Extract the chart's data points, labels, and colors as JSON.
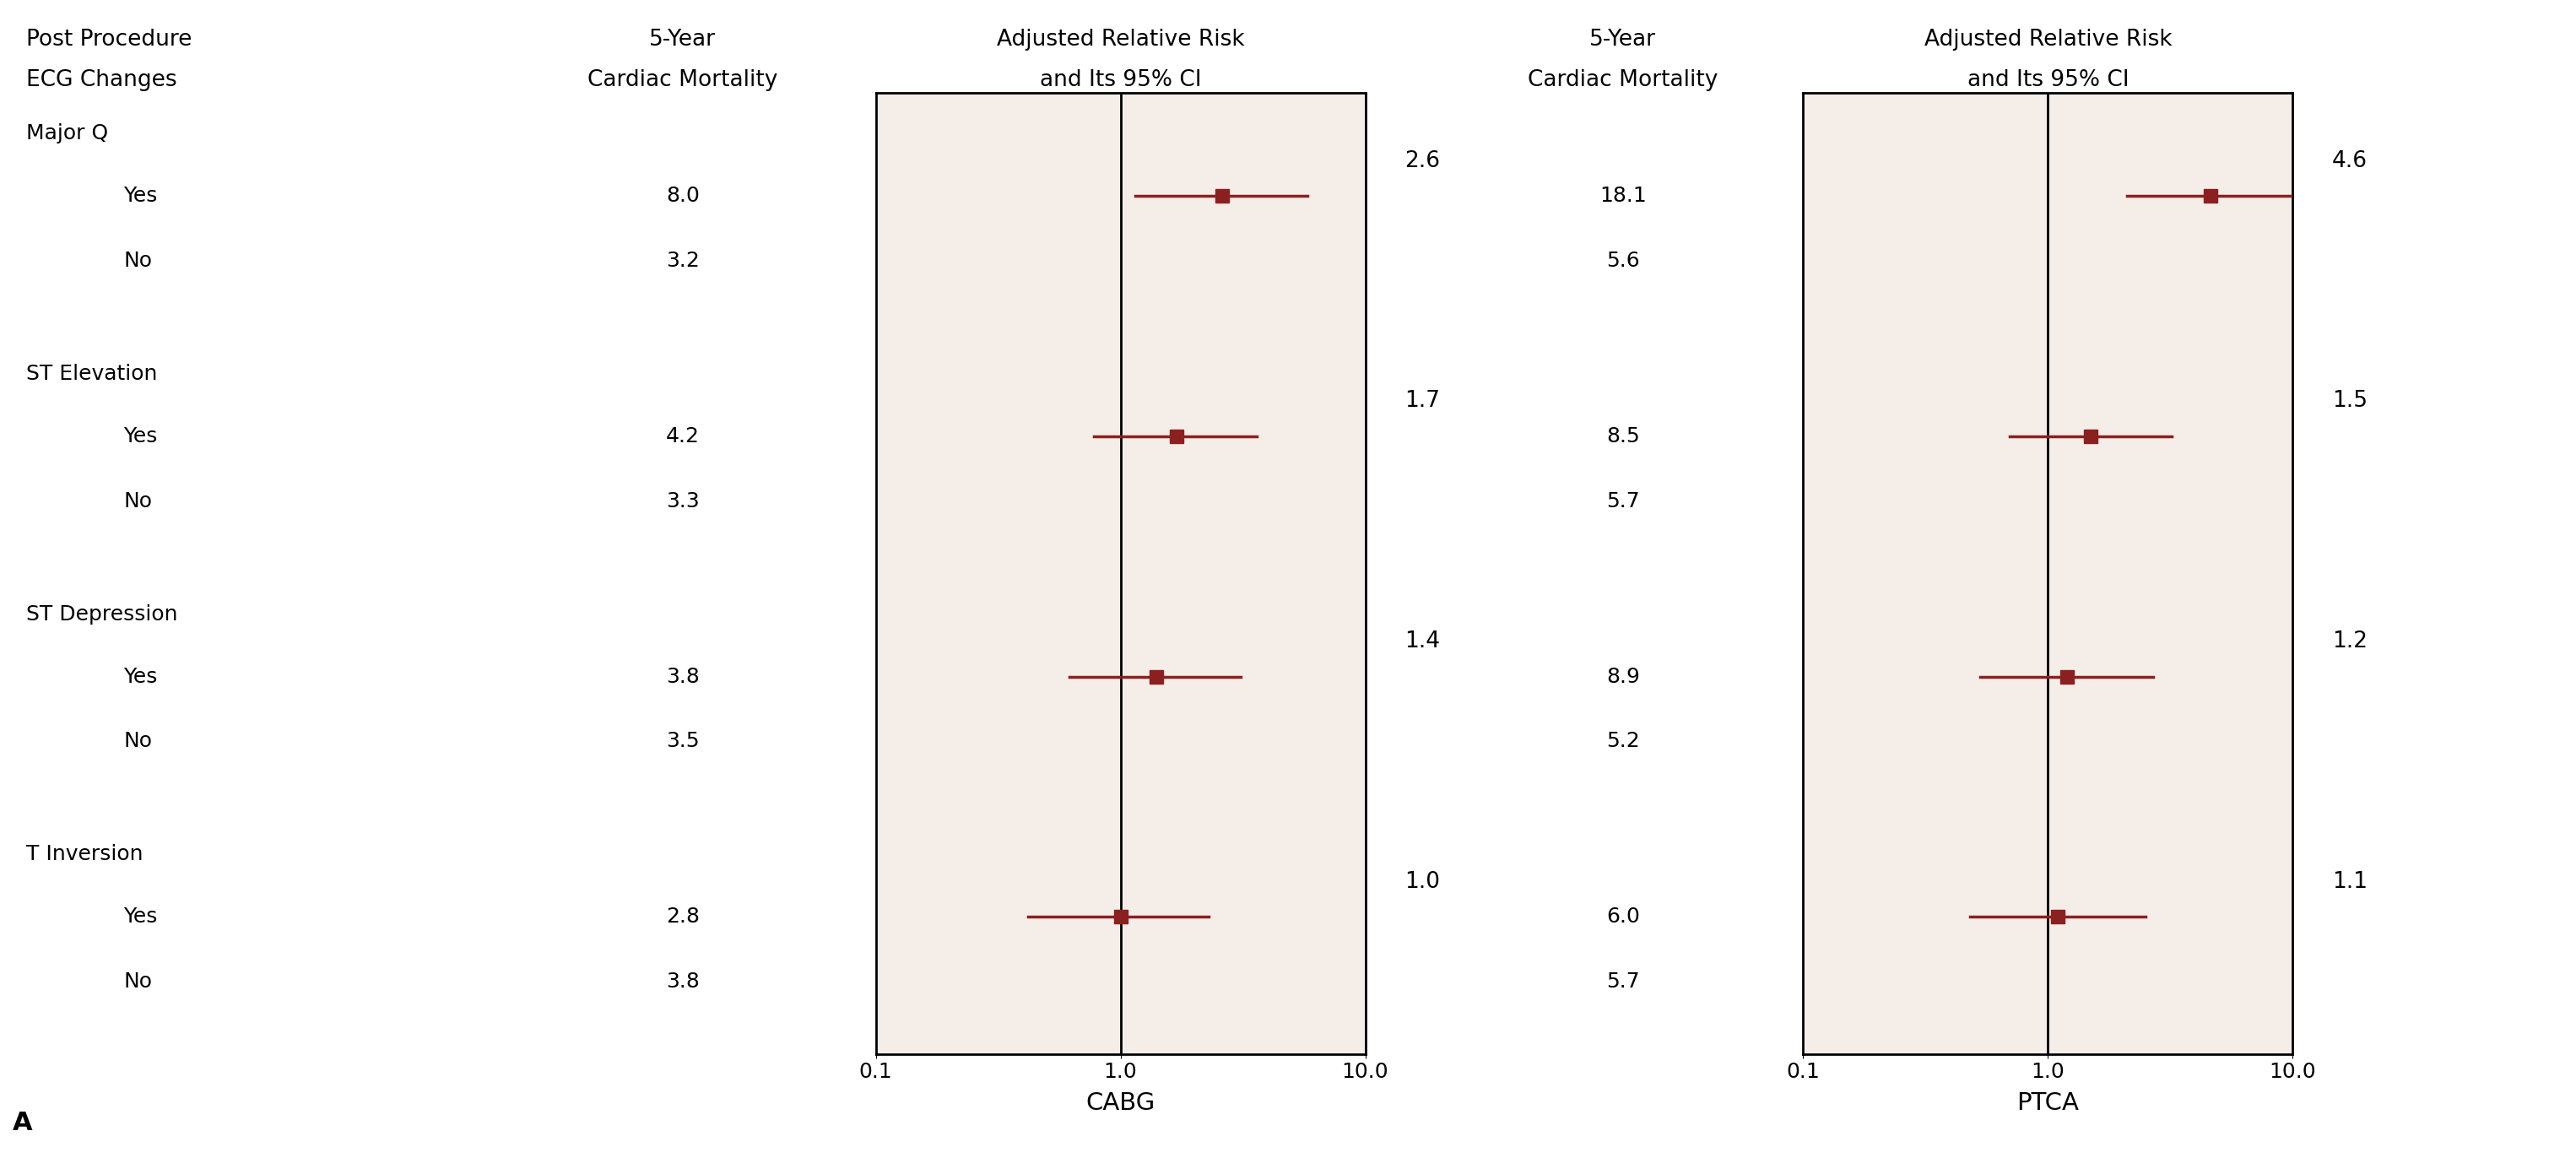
{
  "background_color": "#ffffff",
  "panel_bg_color": "#f5ede8",
  "marker_color": "#8b2020",
  "group_names": [
    "Major Q",
    "ST Elevation",
    "ST Depression",
    "T Inversion"
  ],
  "yes_label": "Yes",
  "no_label": "No",
  "col_header_ecg": [
    "Post Procedure",
    "ECG Changes"
  ],
  "col_header_mort": [
    "5-Year",
    "Cardiac Mortality"
  ],
  "col_header_rr": [
    "Adjusted Relative Risk",
    "and Its 95% CI"
  ],
  "cabg_mortality_yes": [
    8.0,
    4.2,
    3.8,
    2.8
  ],
  "cabg_mortality_no": [
    3.2,
    3.3,
    3.5,
    3.8
  ],
  "ptca_mortality_yes": [
    18.1,
    8.5,
    8.9,
    6.0
  ],
  "ptca_mortality_no": [
    5.6,
    5.7,
    5.2,
    5.7
  ],
  "cabg_rr": [
    2.6,
    1.7,
    1.4,
    1.0
  ],
  "cabg_ci_low": [
    1.15,
    0.78,
    0.62,
    0.42
  ],
  "cabg_ci_high": [
    5.8,
    3.6,
    3.1,
    2.3
  ],
  "ptca_rr": [
    4.6,
    1.5,
    1.2,
    1.1
  ],
  "ptca_ci_low": [
    2.1,
    0.7,
    0.53,
    0.48
  ],
  "ptca_ci_high": [
    9.8,
    3.2,
    2.7,
    2.5
  ],
  "xlabel_cabg": "CABG",
  "xlabel_ptca": "PTCA",
  "label_A": "A",
  "fontsize_header": 19,
  "fontsize_label": 18,
  "fontsize_tick": 18,
  "fontsize_rr": 19,
  "fontsize_A": 22
}
